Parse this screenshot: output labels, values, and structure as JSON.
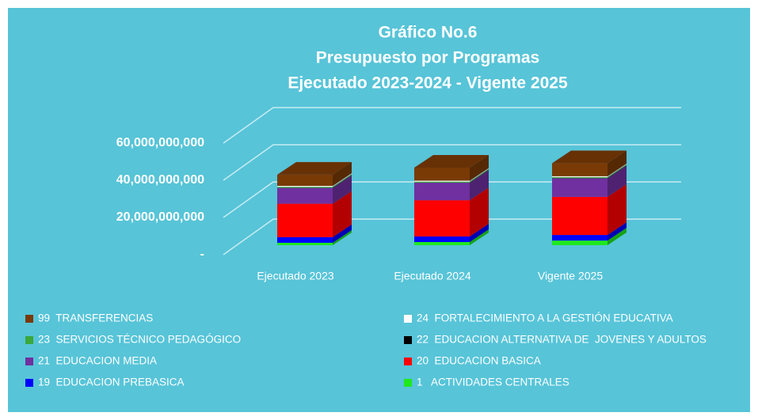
{
  "chart_data": {
    "type": "bar3d",
    "title": [
      "Gráfico No.6",
      "Presupuesto por Programas",
      "Ejecutado 2023-2024 - Vigente 2025"
    ],
    "categories": [
      "Ejecutado 2023",
      "Ejecutado 2024",
      "Vigente 2025"
    ],
    "stacked": true,
    "series": [
      {
        "name": "1   ACTIVIDADES CENTRALES",
        "color": "#1fe81f",
        "values": [
          1300000000,
          1700000000,
          2500000000
        ]
      },
      {
        "name": "19  EDUCACION PREBASICA",
        "color": "#0000ff",
        "values": [
          3000000000,
          3000000000,
          3000000000
        ]
      },
      {
        "name": "20  EDUCACION BASICA",
        "color": "#ff0000",
        "values": [
          18000000000,
          19500000000,
          20500000000
        ]
      },
      {
        "name": "21  EDUCACION MEDIA",
        "color": "#7030a0",
        "values": [
          8500000000,
          9400000000,
          10000000000
        ]
      },
      {
        "name": "22  EDUCACION ALTERNATIVA DE  JOVENES Y ADULTOS",
        "color": "#000000",
        "values": [
          100000000,
          100000000,
          100000000
        ]
      },
      {
        "name": "23  SERVICIOS TÉCNICO PEDAGÓGICO",
        "color": "#3aa83a",
        "values": [
          500000000,
          500000000,
          500000000
        ]
      },
      {
        "name": "24  FORTALECIMIENTO A LA GESTIÓN EDUCATIVA",
        "color": "#ffffff",
        "values": [
          500000000,
          500000000,
          500000000
        ]
      },
      {
        "name": "99  TRANSFERENCIAS",
        "color": "#7a3a06",
        "values": [
          6000000000,
          7000000000,
          7000000000
        ]
      }
    ],
    "ylim": [
      0,
      80000000000
    ],
    "yticks": [
      {
        "value": 0,
        "label": "-"
      },
      {
        "value": 20000000000,
        "label": "20,000,000,000"
      },
      {
        "value": 40000000000,
        "label": "40,000,000,000"
      },
      {
        "value": 60000000000,
        "label": "60,000,000,000"
      }
    ],
    "grid": true,
    "legend": "bottom"
  }
}
